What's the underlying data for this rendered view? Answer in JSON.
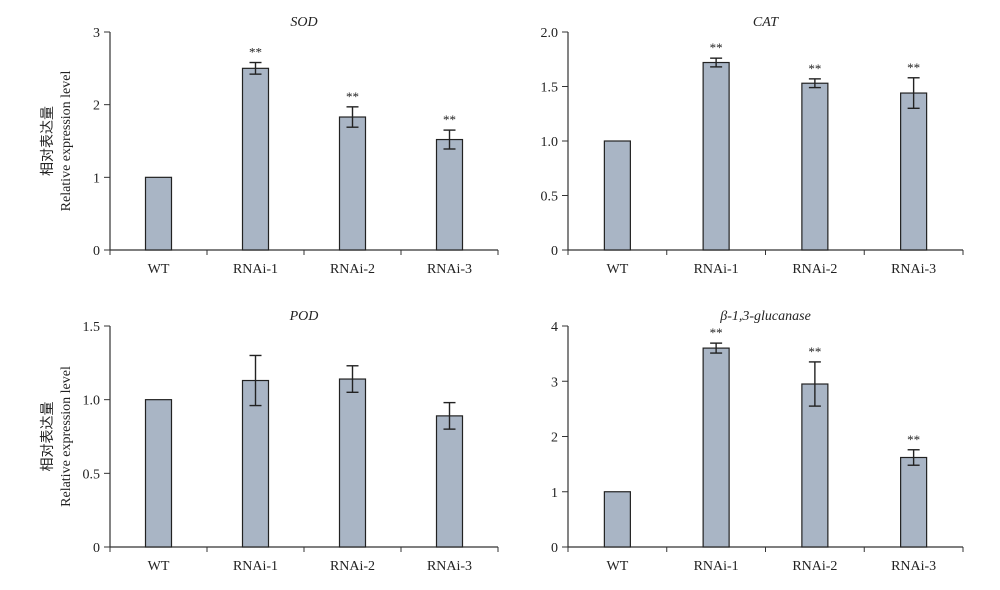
{
  "ylabel_cn": "相对表达量",
  "ylabel_en": "Relative expression level",
  "chart_data": [
    {
      "type": "bar",
      "title": "SOD",
      "categories": [
        "WT",
        "RNAi-1",
        "RNAi-2",
        "RNAi-3"
      ],
      "values": [
        1.0,
        2.5,
        1.83,
        1.52
      ],
      "errors": [
        0,
        0.08,
        0.14,
        0.13
      ],
      "significance": [
        "",
        "**",
        "**",
        "**"
      ],
      "ylabel": "相对表达量 Relative expression level",
      "ylim": [
        0,
        3
      ],
      "yticks": [
        0,
        1,
        2,
        3
      ],
      "ytick_labels": [
        "0",
        "1",
        "2",
        "3"
      ]
    },
    {
      "type": "bar",
      "title": "CAT",
      "categories": [
        "WT",
        "RNAi-1",
        "RNAi-2",
        "RNAi-3"
      ],
      "values": [
        1.0,
        1.72,
        1.53,
        1.44
      ],
      "errors": [
        0,
        0.04,
        0.04,
        0.14
      ],
      "significance": [
        "",
        "**",
        "**",
        "**"
      ],
      "ylabel": "",
      "ylim": [
        0,
        2
      ],
      "yticks": [
        0,
        0.5,
        1.0,
        1.5,
        2.0
      ],
      "ytick_labels": [
        "0",
        "0.5",
        "1.0",
        "1.5",
        "2.0"
      ]
    },
    {
      "type": "bar",
      "title": "POD",
      "categories": [
        "WT",
        "RNAi-1",
        "RNAi-2",
        "RNAi-3"
      ],
      "values": [
        1.0,
        1.13,
        1.14,
        0.89
      ],
      "errors": [
        0,
        0.17,
        0.09,
        0.09
      ],
      "significance": [
        "",
        "",
        "",
        ""
      ],
      "ylabel": "相对表达量 Relative expression level",
      "ylim": [
        0,
        1.5
      ],
      "yticks": [
        0,
        0.5,
        1.0,
        1.5
      ],
      "ytick_labels": [
        "0",
        "0.5",
        "1.0",
        "1.5"
      ]
    },
    {
      "type": "bar",
      "title": "β-1,3-glucanase",
      "categories": [
        "WT",
        "RNAi-1",
        "RNAi-2",
        "RNAi-3"
      ],
      "values": [
        1.0,
        3.6,
        2.95,
        1.62
      ],
      "errors": [
        0,
        0.09,
        0.4,
        0.14
      ],
      "significance": [
        "",
        "**",
        "**",
        "**"
      ],
      "ylabel": "",
      "ylim": [
        0,
        4
      ],
      "yticks": [
        0,
        1,
        2,
        3,
        4
      ],
      "ytick_labels": [
        "0",
        "1",
        "2",
        "3",
        "4"
      ]
    }
  ]
}
